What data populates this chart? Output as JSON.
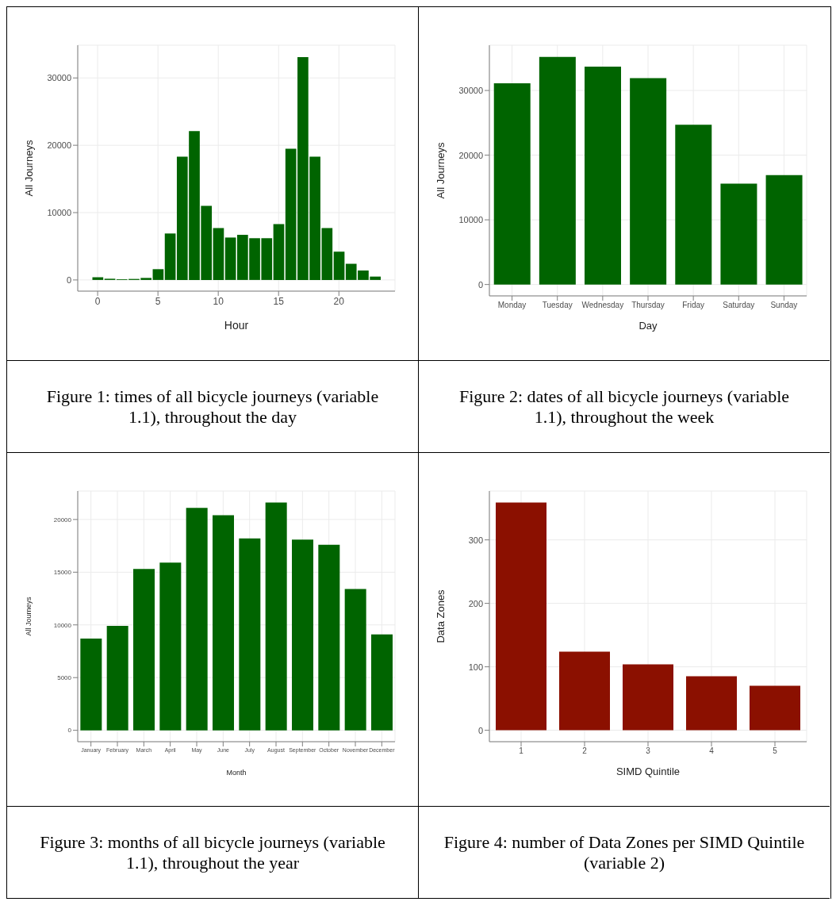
{
  "chart_data": [
    {
      "type": "bar",
      "x": [
        0,
        1,
        2,
        3,
        4,
        5,
        6,
        7,
        8,
        9,
        10,
        11,
        12,
        13,
        14,
        15,
        16,
        17,
        18,
        19,
        20,
        21,
        22,
        23
      ],
      "values": [
        400,
        180,
        100,
        150,
        300,
        1600,
        6900,
        18300,
        22100,
        11000,
        7700,
        6300,
        6700,
        6200,
        6200,
        8300,
        19500,
        33100,
        18300,
        7700,
        4200,
        2400,
        1400,
        500
      ],
      "color": "#006400",
      "xlim": [
        -1.65,
        24.65
      ],
      "xticks": [
        0,
        5,
        10,
        15,
        20
      ],
      "ylim": [
        -1660,
        34860
      ],
      "yticks": [
        0,
        10000,
        20000,
        30000
      ],
      "xlabel": "Hour",
      "ylabel": "All Journeys",
      "grid": true,
      "annotations": [
        "Figure 1: times of all bicycle journeys (variable 1.1), throughout the day"
      ]
    },
    {
      "type": "bar",
      "categories": [
        "Monday",
        "Tuesday",
        "Wednesday",
        "Thursday",
        "Friday",
        "Saturday",
        "Sunday"
      ],
      "values": [
        31100,
        35200,
        33700,
        31900,
        24700,
        15600,
        16900
      ],
      "color": "#006400",
      "ylim": [
        -1760,
        37000
      ],
      "yticks": [
        0,
        10000,
        20000,
        30000
      ],
      "xlabel": "Day",
      "ylabel": "All Journeys",
      "grid": true,
      "annotations": [
        "Figure 2: dates of all bicycle journeys (variable 1.1), throughout the week"
      ]
    },
    {
      "type": "bar",
      "categories": [
        "January",
        "February",
        "March",
        "April",
        "May",
        "June",
        "July",
        "August",
        "September",
        "October",
        "November",
        "December"
      ],
      "values": [
        8700,
        9900,
        15300,
        15900,
        21100,
        20400,
        18200,
        21600,
        18100,
        17600,
        13400,
        9100
      ],
      "color": "#006400",
      "ylim": [
        -1080,
        22700
      ],
      "yticks": [
        0,
        5000,
        10000,
        15000,
        20000
      ],
      "xlabel": "Month",
      "ylabel": "All Journeys",
      "grid": true,
      "annotations": [
        "Figure 3: months of all bicycle journeys (variable 1.1), throughout the year"
      ]
    },
    {
      "type": "bar",
      "categories": [
        "1",
        "2",
        "3",
        "4",
        "5"
      ],
      "values": [
        359,
        124,
        104,
        85,
        70
      ],
      "color": "#8b1000",
      "ylim": [
        -18,
        377
      ],
      "yticks": [
        0,
        100,
        200,
        300
      ],
      "xlabel": "SIMD Quintile",
      "ylabel": "Data Zones",
      "grid": true,
      "annotations": [
        "Figure 4: number of Data Zones per SIMD Quintile (variable 2)"
      ]
    }
  ]
}
